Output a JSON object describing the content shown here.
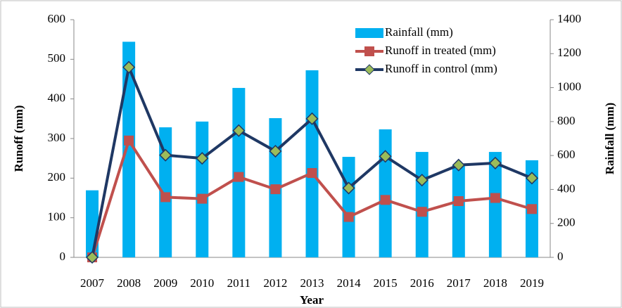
{
  "chart_data": {
    "type": "combo",
    "x_label": "Year",
    "y_label": "Runoff (mm)",
    "y2_label": "Rainfall (mm)",
    "categories": [
      "2007",
      "2008",
      "2009",
      "2010",
      "2011",
      "2012",
      "2013",
      "2014",
      "2015",
      "2016",
      "2017",
      "2018",
      "2019"
    ],
    "series": [
      {
        "name": "Rainfall (mm)",
        "type": "bar",
        "axis": "y2",
        "color": "#00b0f0",
        "values": [
          395,
          1270,
          766,
          800,
          998,
          820,
          1102,
          592,
          754,
          621,
          545,
          621,
          572
        ]
      },
      {
        "name": "Runoff in treated (mm)",
        "type": "line",
        "marker": "square",
        "color": "#c0504d",
        "marker_color": "#c0504d",
        "values": [
          0,
          295,
          152,
          148,
          203,
          172,
          213,
          102,
          145,
          115,
          142,
          150,
          122
        ]
      },
      {
        "name": "Runoff in control (mm)",
        "type": "line",
        "marker": "diamond",
        "color": "#1f3864",
        "marker_color": "#9bbb59",
        "values": [
          0,
          480,
          258,
          250,
          320,
          268,
          350,
          175,
          255,
          195,
          233,
          238,
          200
        ]
      }
    ],
    "ylim": [
      0,
      600
    ],
    "yticks": [
      0,
      100,
      200,
      300,
      400,
      500,
      600
    ],
    "y2lim": [
      0,
      1400
    ],
    "y2ticks": [
      0,
      200,
      400,
      600,
      800,
      1000,
      1200,
      1400
    ],
    "grid": false,
    "legend": "top-right"
  }
}
